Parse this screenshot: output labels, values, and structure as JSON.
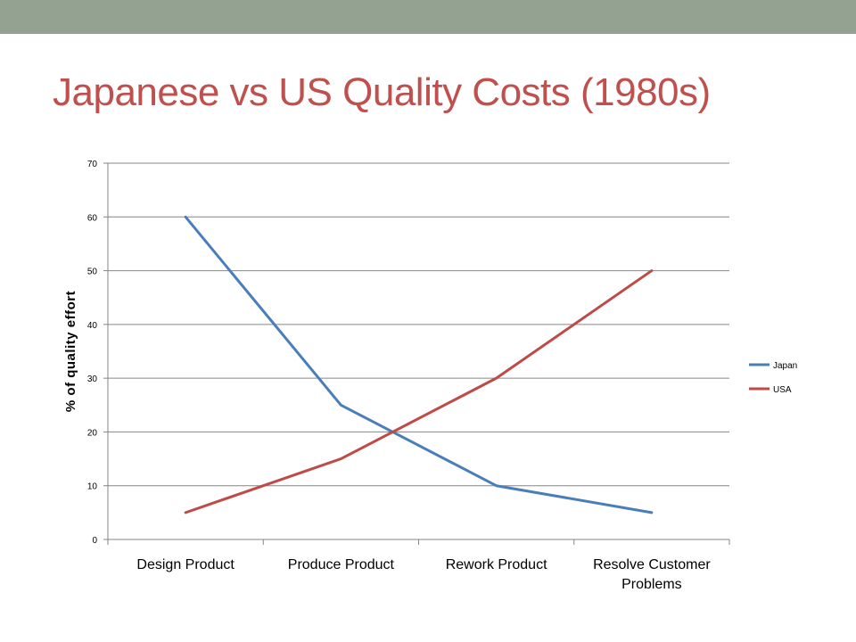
{
  "slide": {
    "title": "Japanese vs US Quality Costs (1980s)",
    "title_color": "#c0504d",
    "band_color": "#94a391"
  },
  "chart_data": {
    "type": "line",
    "title": "",
    "xlabel": "",
    "ylabel": "% of quality effort",
    "categories": [
      [
        "Design Product"
      ],
      [
        "Produce Product"
      ],
      [
        "Rework Product"
      ],
      [
        "Resolve Customer",
        "Problems"
      ]
    ],
    "series": [
      {
        "name": "Japan",
        "values": [
          60,
          25,
          10,
          5
        ],
        "color": "#4a7ebb"
      },
      {
        "name": "USA",
        "values": [
          5,
          15,
          30,
          50
        ],
        "color": "#be4b48"
      }
    ],
    "ylim": [
      0,
      70
    ],
    "yticks": [
      0,
      10,
      20,
      30,
      40,
      50,
      60,
      70
    ],
    "grid": true,
    "legend": "right"
  }
}
